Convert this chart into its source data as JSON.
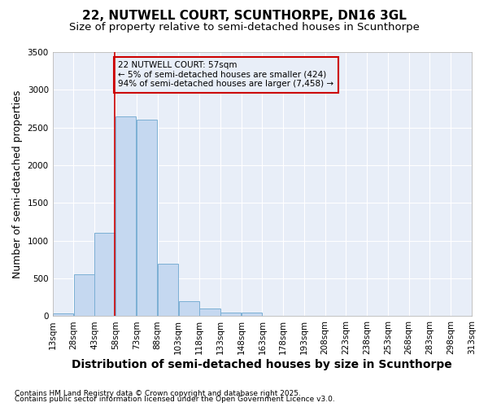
{
  "title_line1": "22, NUTWELL COURT, SCUNTHORPE, DN16 3GL",
  "title_line2": "Size of property relative to semi-detached houses in Scunthorpe",
  "xlabel": "Distribution of semi-detached houses by size in Scunthorpe",
  "ylabel": "Number of semi-detached properties",
  "footnote1": "Contains HM Land Registry data © Crown copyright and database right 2025.",
  "footnote2": "Contains public sector information licensed under the Open Government Licence v3.0.",
  "annotation_title": "22 NUTWELL COURT: 57sqm",
  "annotation_line1": "← 5% of semi-detached houses are smaller (424)",
  "annotation_line2": "94% of semi-detached houses are larger (7,458) →",
  "property_size": 57,
  "bin_edges": [
    13,
    28,
    43,
    58,
    73,
    88,
    103,
    118,
    133,
    148,
    163,
    178,
    193,
    208,
    223,
    238,
    253,
    268,
    283,
    298,
    313
  ],
  "bar_heights": [
    35,
    550,
    1100,
    2650,
    2600,
    700,
    200,
    100,
    50,
    50,
    0,
    0,
    0,
    0,
    0,
    0,
    0,
    0,
    0,
    0
  ],
  "bar_color": "#c5d8f0",
  "bar_edge_color": "#7bafd4",
  "vline_color": "#cc0000",
  "vline_x": 57.5,
  "ylim": [
    0,
    3500
  ],
  "yticks": [
    0,
    500,
    1000,
    1500,
    2000,
    2500,
    3000,
    3500
  ],
  "bg_color": "#ffffff",
  "plot_bg_color": "#e8eef8",
  "grid_color": "#ffffff",
  "annotation_box_color": "#cc0000",
  "title_fontsize": 11,
  "subtitle_fontsize": 9.5,
  "axis_label_fontsize": 9,
  "tick_fontsize": 7.5,
  "annotation_fontsize": 7.5,
  "footnote_fontsize": 6.5
}
